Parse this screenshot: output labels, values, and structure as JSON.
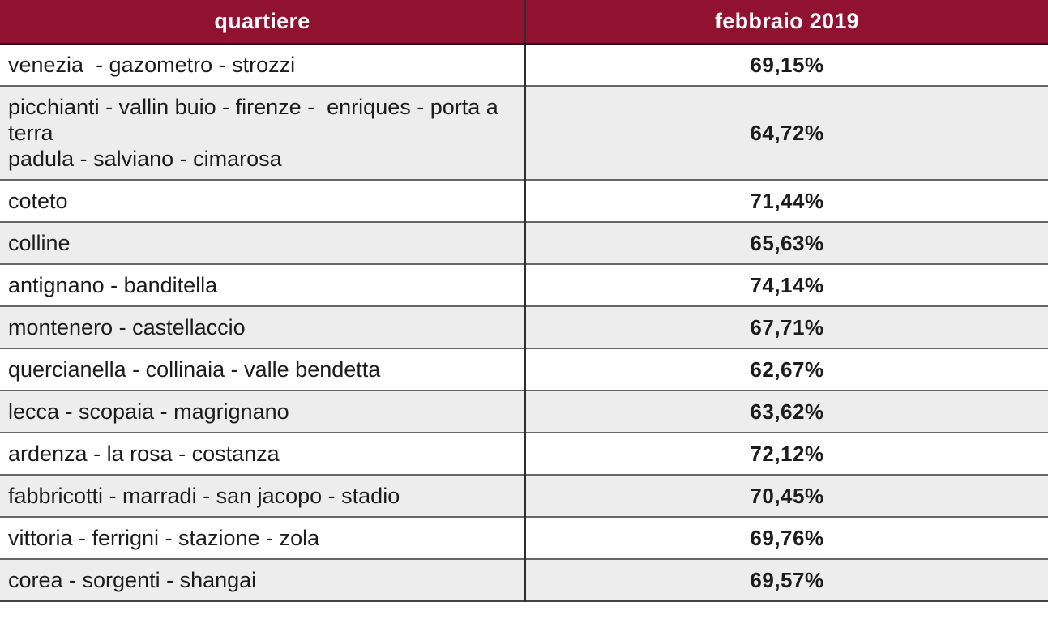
{
  "table": {
    "columns": [
      "quartiere",
      "febbraio 2019"
    ],
    "rows": [
      {
        "quartiere": "venezia  - gazometro - strozzi",
        "value": "69,15%"
      },
      {
        "quartiere": "picchianti - vallin buio - firenze -  enriques - porta a terra\npadula - salviano - cimarosa",
        "value": "64,72%"
      },
      {
        "quartiere": "coteto",
        "value": "71,44%"
      },
      {
        "quartiere": "colline",
        "value": "65,63%"
      },
      {
        "quartiere": "antignano - banditella",
        "value": "74,14%"
      },
      {
        "quartiere": "montenero - castellaccio",
        "value": "67,71%"
      },
      {
        "quartiere": "quercianella - collinaia - valle bendetta",
        "value": "62,67%"
      },
      {
        "quartiere": "lecca - scopaia - magrignano",
        "value": "63,62%"
      },
      {
        "quartiere": "ardenza - la rosa - costanza",
        "value": "72,12%"
      },
      {
        "quartiere": "fabbricotti - marradi - san jacopo - stadio",
        "value": "70,45%"
      },
      {
        "quartiere": "vittoria - ferrigni - stazione - zola",
        "value": "69,76%"
      },
      {
        "quartiere": "corea - sorgenti - shangai",
        "value": "69,57%"
      }
    ]
  },
  "colors": {
    "header_bg": "#911230",
    "header_text": "#ffffff",
    "row_bg": "#ffffff",
    "row_alt_bg": "#ededed",
    "body_text": "#1c1c1c",
    "divider_vertical": "#2e2e2e",
    "divider_horizontal": "#666666"
  },
  "chart_data": {
    "type": "table",
    "title": "",
    "columns": [
      "quartiere",
      "febbraio 2019"
    ],
    "rows": [
      [
        "venezia  - gazometro - strozzi",
        "69,15%"
      ],
      [
        "picchianti - vallin buio - firenze -  enriques - porta a terra / padula - salviano - cimarosa",
        "64,72%"
      ],
      [
        "coteto",
        "71,44%"
      ],
      [
        "colline",
        "65,63%"
      ],
      [
        "antignano - banditella",
        "74,14%"
      ],
      [
        "montenero - castellaccio",
        "67,71%"
      ],
      [
        "quercianella - collinaia - valle bendetta",
        "62,67%"
      ],
      [
        "lecca - scopaia - magrignano",
        "63,62%"
      ],
      [
        "ardenza - la rosa - costanza",
        "72,12%"
      ],
      [
        "fabbricotti - marradi - san jacopo - stadio",
        "70,45%"
      ],
      [
        "vittoria - ferrigni - stazione - zola",
        "69,76%"
      ],
      [
        "corea - sorgenti - shangai",
        "69,57%"
      ]
    ],
    "values_numeric_percent": [
      69.15,
      64.72,
      71.44,
      65.63,
      74.14,
      67.71,
      62.67,
      63.62,
      72.12,
      70.45,
      69.76,
      69.57
    ]
  }
}
